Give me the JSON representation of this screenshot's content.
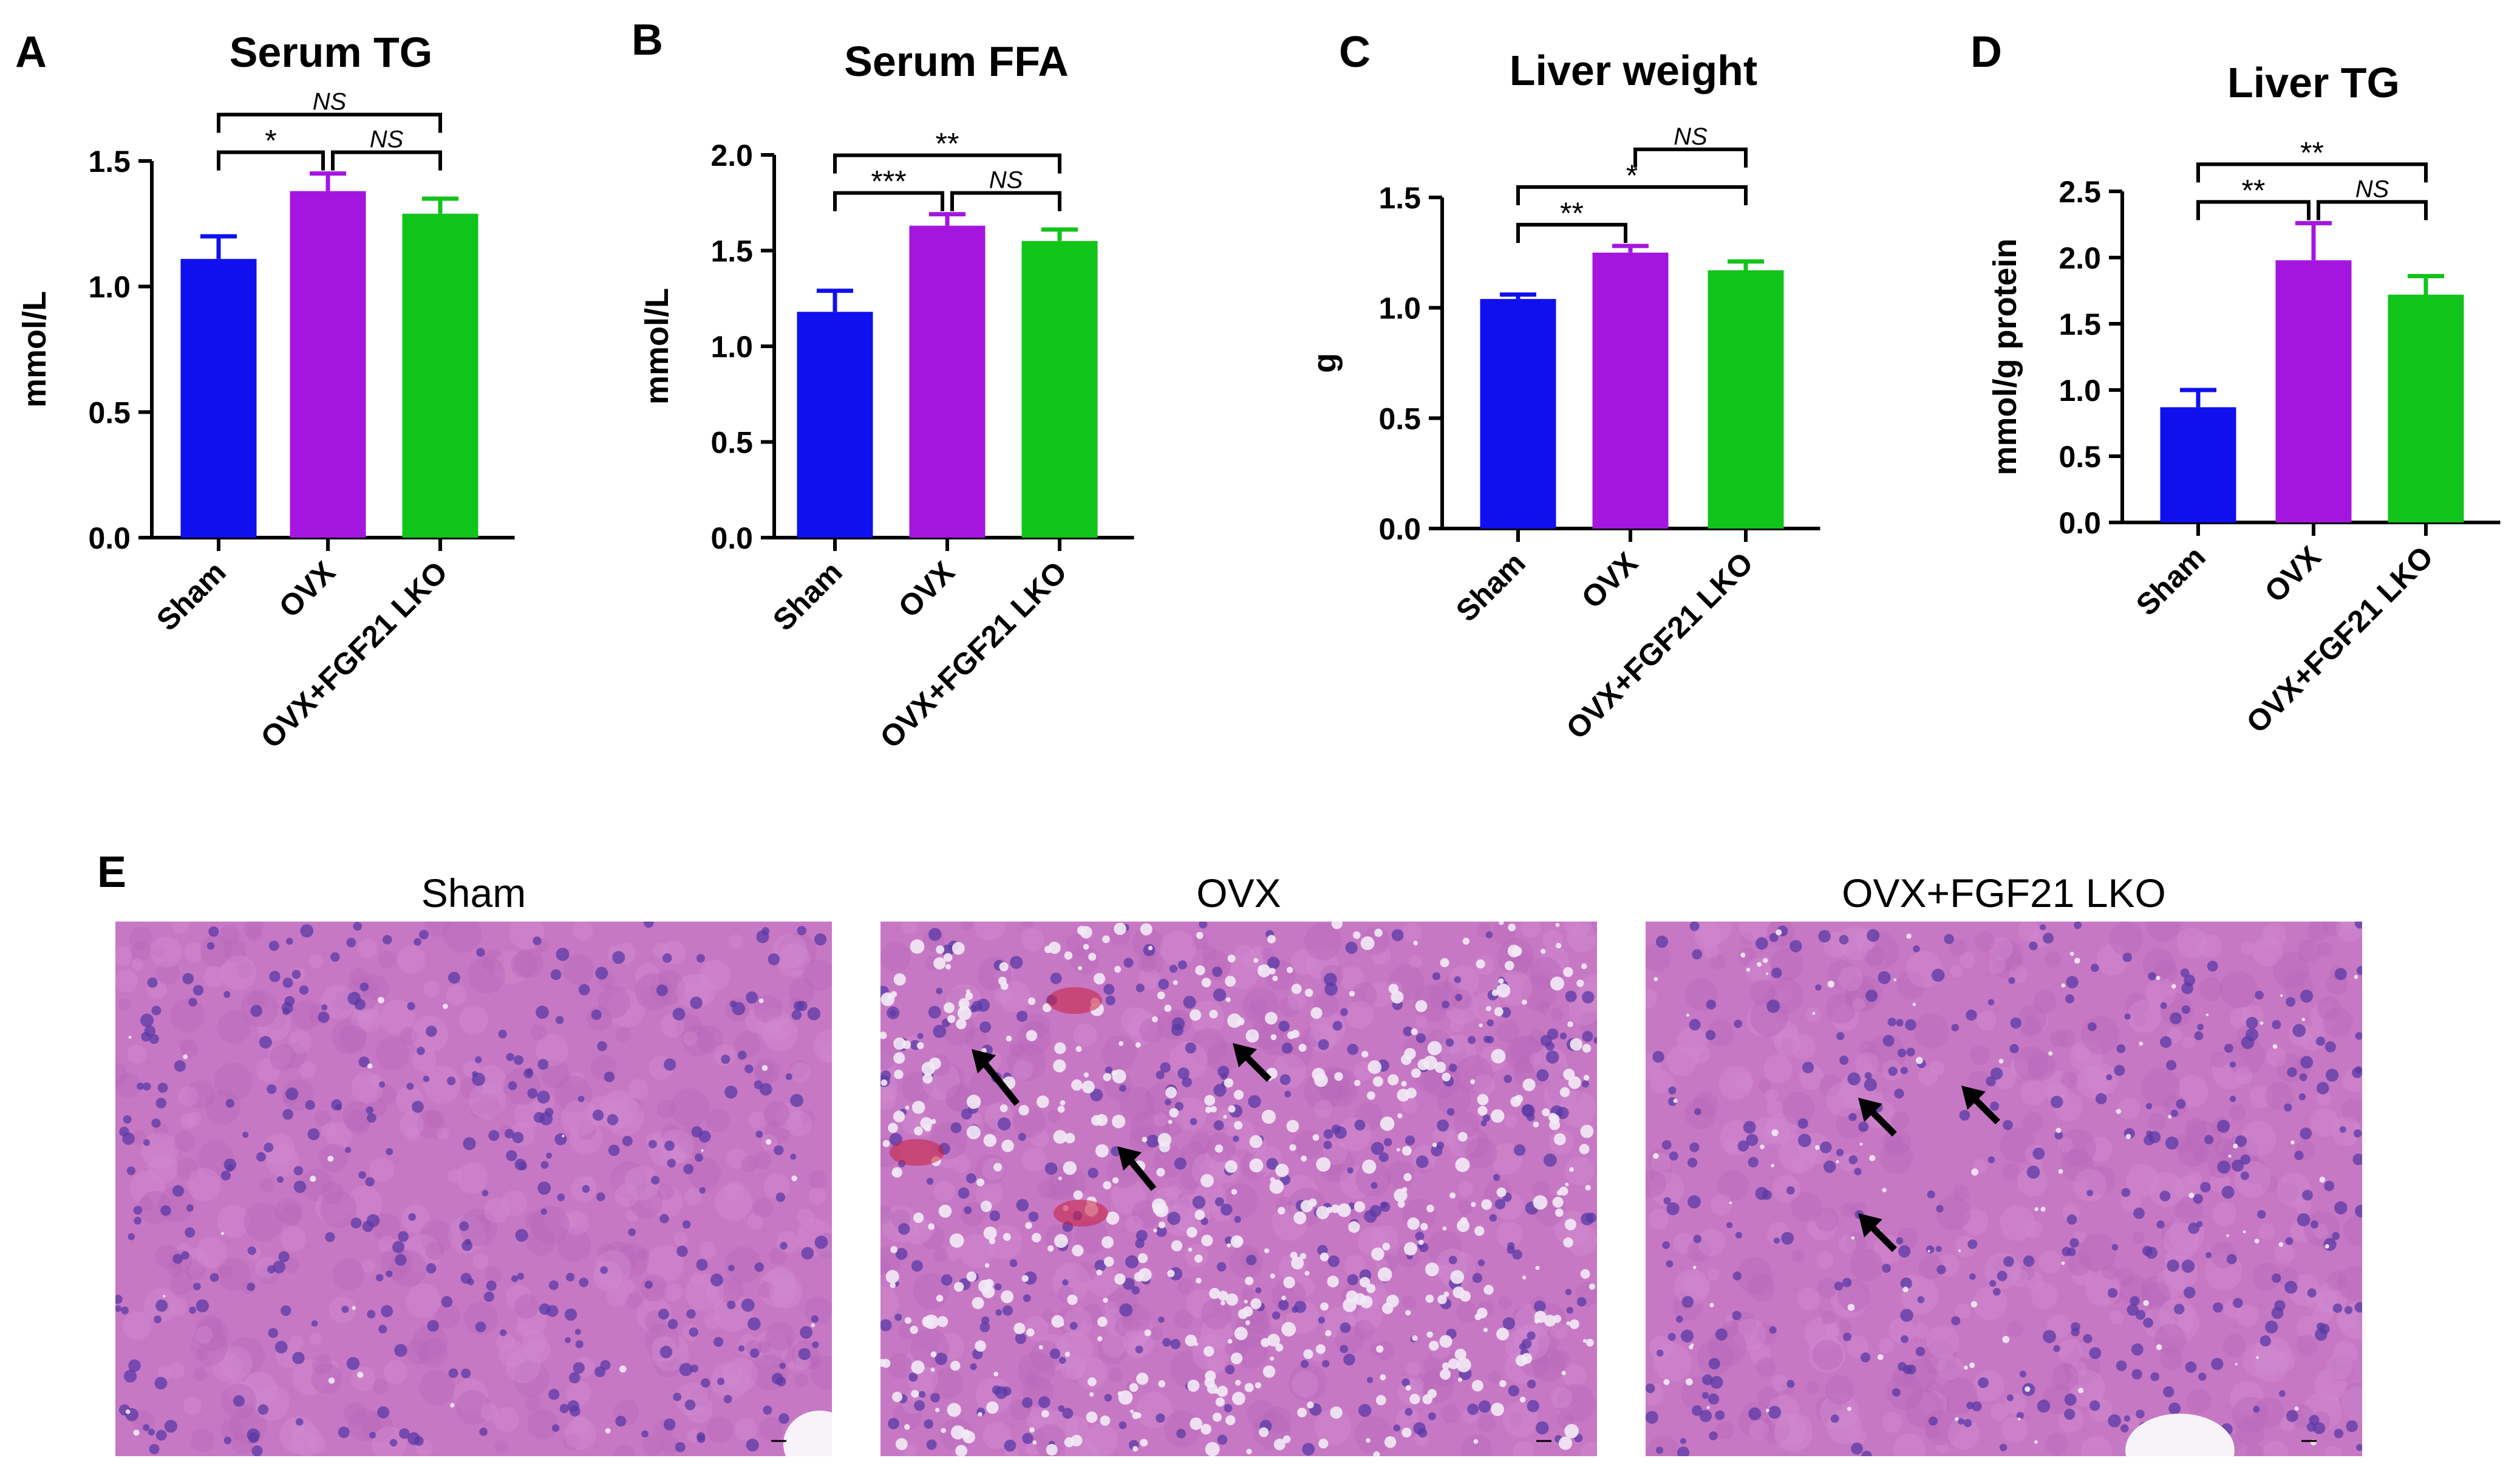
{
  "colors": {
    "sham": "#1010ee",
    "ovx": "#a416e0",
    "lko": "#11c41a",
    "tissue_bg": "#c778c4",
    "tissue_nucleus": "#5a3aa6",
    "tissue_vacuole": "#f2eaf6",
    "tissue_blood": "#c81f3d"
  },
  "chart_data": [
    {
      "panel": "A",
      "type": "bar",
      "title": "Serum TG",
      "xlabel": "",
      "ylabel": "mmol/L",
      "categories": [
        "Sham",
        "OVX",
        "OVX+FGF21 LKO"
      ],
      "values": [
        1.11,
        1.38,
        1.29
      ],
      "errors": [
        0.09,
        0.07,
        0.06
      ],
      "ylim": [
        0,
        1.5
      ],
      "yticks": [
        "0.0",
        "0.5",
        "1.0",
        "1.5"
      ],
      "significance": [
        {
          "from": 0,
          "to": 1,
          "label": "*"
        },
        {
          "from": 1,
          "to": 2,
          "label": "NS"
        },
        {
          "from": 0,
          "to": 2,
          "label": "NS"
        }
      ]
    },
    {
      "panel": "B",
      "type": "bar",
      "title": "Serum FFA",
      "xlabel": "",
      "ylabel": "mmol/L",
      "categories": [
        "Sham",
        "OVX",
        "OVX+FGF21 LKO"
      ],
      "values": [
        1.18,
        1.63,
        1.55
      ],
      "errors": [
        0.11,
        0.06,
        0.06
      ],
      "ylim": [
        0,
        2.0
      ],
      "yticks": [
        "0.0",
        "0.5",
        "1.0",
        "1.5",
        "2.0"
      ],
      "significance": [
        {
          "from": 0,
          "to": 1,
          "label": "***"
        },
        {
          "from": 1,
          "to": 2,
          "label": "NS"
        },
        {
          "from": 0,
          "to": 2,
          "label": "**"
        }
      ]
    },
    {
      "panel": "C",
      "type": "bar",
      "title": "Liver weight",
      "xlabel": "",
      "ylabel": "g",
      "categories": [
        "Sham",
        "OVX",
        "OVX+FGF21 LKO"
      ],
      "values": [
        1.04,
        1.25,
        1.17
      ],
      "errors": [
        0.02,
        0.03,
        0.04
      ],
      "ylim": [
        0,
        1.5
      ],
      "yticks": [
        "0.0",
        "0.5",
        "1.0",
        "1.5"
      ],
      "significance": [
        {
          "from": 0,
          "to": 1,
          "label": "**"
        },
        {
          "from": 0,
          "to": 2,
          "label": "*"
        },
        {
          "from": 1,
          "to": 2,
          "label": "NS"
        }
      ]
    },
    {
      "panel": "D",
      "type": "bar",
      "title": "Liver TG",
      "xlabel": "",
      "ylabel": "mmol/g protein",
      "categories": [
        "Sham",
        "OVX",
        "OVX+FGF21 LKO"
      ],
      "values": [
        0.87,
        1.98,
        1.72
      ],
      "errors": [
        0.13,
        0.28,
        0.14
      ],
      "ylim": [
        0,
        2.5
      ],
      "yticks": [
        "0.0",
        "0.5",
        "1.0",
        "1.5",
        "2.0",
        "2.5"
      ],
      "significance": [
        {
          "from": 0,
          "to": 1,
          "label": "**"
        },
        {
          "from": 1,
          "to": 2,
          "label": "NS"
        },
        {
          "from": 0,
          "to": 2,
          "label": "**"
        }
      ]
    }
  ],
  "histology": {
    "panel": "E",
    "images": [
      {
        "title": "Sham",
        "arrows": 0
      },
      {
        "title": "OVX",
        "arrows": 3
      },
      {
        "title": "OVX+FGF21 LKO",
        "arrows": 3
      }
    ]
  }
}
